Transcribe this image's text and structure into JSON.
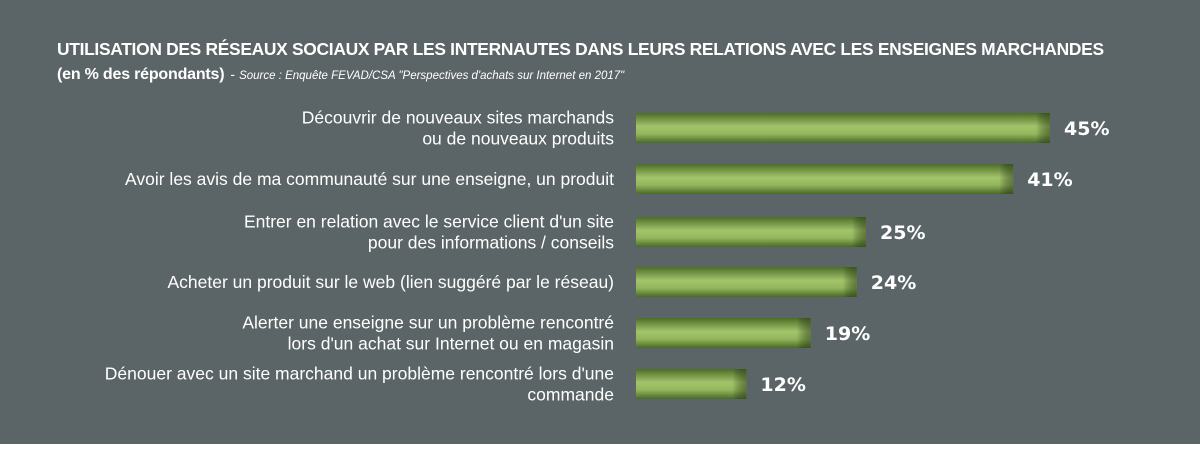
{
  "title": "UTILISATION DES RÉSEAUX SOCIAUX PAR LES INTERNAUTES DANS LEURS RELATIONS AVEC LES ENSEIGNES MARCHANDES",
  "subtitle": "(en % des répondants)",
  "source_separator": "-",
  "source": "Source : Enquête FEVAD/CSA \"Perspectives d'achats sur Internet en 2017\"",
  "colors": {
    "background": "#5b6466",
    "bar_light": "#a3c46b",
    "bar_mid": "#7fa04b",
    "bar_dark": "#4a6a26",
    "text": "#ffffff"
  },
  "chart_data": {
    "type": "bar",
    "orientation": "horizontal",
    "unit": "%",
    "categories": [
      [
        "Découvrir de nouveaux sites marchands",
        "ou de nouveaux produits"
      ],
      [
        "Avoir les avis de ma communauté sur une enseigne, un produit"
      ],
      [
        "Entrer en relation avec le service client d'un site",
        "pour des informations / conseils"
      ],
      [
        "Acheter un produit sur le web (lien suggéré par le réseau)"
      ],
      [
        "Alerter une enseigne sur un problème rencontré",
        "lors d'un achat sur Internet ou en magasin"
      ],
      [
        "Dénouer avec un site marchand un problème rencontré lors d'une",
        "commande"
      ]
    ],
    "values": [
      45,
      41,
      25,
      24,
      19,
      12
    ],
    "value_labels": [
      "45%",
      "41%",
      "25%",
      "24%",
      "19%",
      "12%"
    ],
    "xlim": [
      0,
      45
    ],
    "grid": false,
    "legend": "none"
  }
}
